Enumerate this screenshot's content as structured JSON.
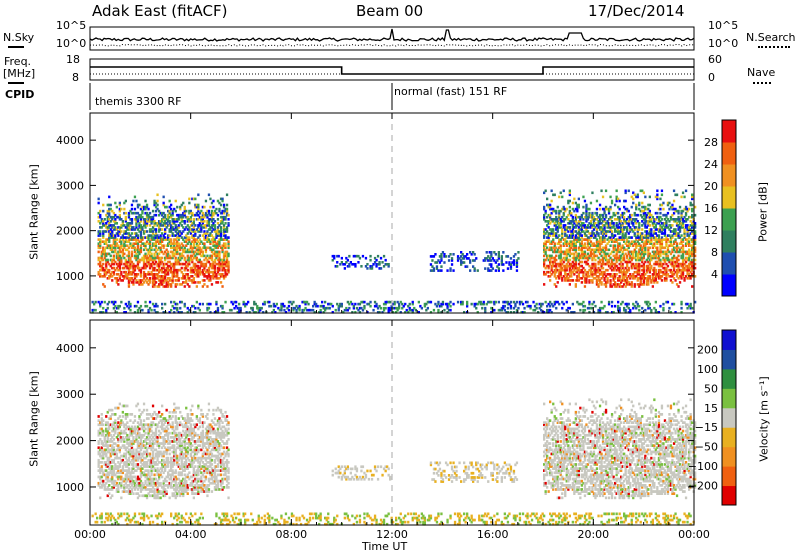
{
  "header": {
    "station": "Adak East (fitACF)",
    "beam": "Beam 00",
    "date": "17/Dec/2014"
  },
  "panels": {
    "nsky_label": "N.Sky",
    "nsearch_label": "N.Search",
    "nsky_ticks": [
      "10^5",
      "10^0"
    ],
    "nsearch_ticks": [
      "10^5",
      "10^0"
    ],
    "freq_label": "Freq.",
    "freq_unit": "[MHz]",
    "freq_ticks": [
      "18",
      "8"
    ],
    "nave_label": "Nave",
    "nave_ticks": [
      "60",
      "0"
    ],
    "cpid_label": "CPID",
    "cpid_segments": [
      "themis 3300 RF",
      "normal (fast) 151 RF"
    ]
  },
  "colors": {
    "power": [
      "#0000ff",
      "#1f4fb0",
      "#2f7f5f",
      "#3ca050",
      "#e8c020",
      "#f09020",
      "#f06010",
      "#e81010"
    ],
    "velocity": [
      "#e00000",
      "#f06010",
      "#f09020",
      "#e8b020",
      "#c8c8c0",
      "#7ac040",
      "#2f8f3f",
      "#1f4fa0",
      "#1010d0"
    ],
    "gray_bg": "#c8c8c0"
  },
  "chart_data": [
    {
      "type": "heatmap",
      "name": "power-panel",
      "ylabel": "Slant Range [km]",
      "yticks": [
        1000,
        2000,
        3000,
        4000
      ],
      "ylim": [
        180,
        4600
      ],
      "xlim": [
        0,
        24
      ],
      "colorbar": {
        "label": "Power [dB]",
        "ticks": [
          "4",
          "8",
          "12",
          "16",
          "20",
          "24",
          "28"
        ],
        "range": [
          0,
          32
        ]
      },
      "regions": [
        {
          "t0": 0.3,
          "t1": 5.5,
          "r0": 750,
          "r1": 2800,
          "kind": "strong"
        },
        {
          "t0": 9.6,
          "t1": 11.9,
          "r0": 1150,
          "r1": 1450,
          "kind": "weak"
        },
        {
          "t0": 13.5,
          "t1": 17.0,
          "r0": 1100,
          "r1": 1550,
          "kind": "weak"
        },
        {
          "t0": 18.0,
          "t1": 24.0,
          "r0": 750,
          "r1": 2900,
          "kind": "strong"
        },
        {
          "t0": 0.0,
          "t1": 24.0,
          "r0": 180,
          "r1": 450,
          "kind": "ground"
        }
      ]
    },
    {
      "type": "heatmap",
      "name": "velocity-panel",
      "ylabel": "Slant Range [km]",
      "yticks": [
        1000,
        2000,
        3000,
        4000
      ],
      "ylim": [
        180,
        4600
      ],
      "xlim": [
        0,
        24
      ],
      "colorbar": {
        "label": "Velocity [m s⁻¹]",
        "ticks": [
          "200",
          "100",
          "50",
          "15",
          "−15",
          "−50",
          "−100",
          "−200"
        ],
        "range": [
          -250,
          250
        ]
      }
    }
  ],
  "time_axis": {
    "label": "Time UT",
    "ticks": [
      "00:00",
      "04:00",
      "08:00",
      "12:00",
      "16:00",
      "20:00",
      "00:00"
    ]
  }
}
